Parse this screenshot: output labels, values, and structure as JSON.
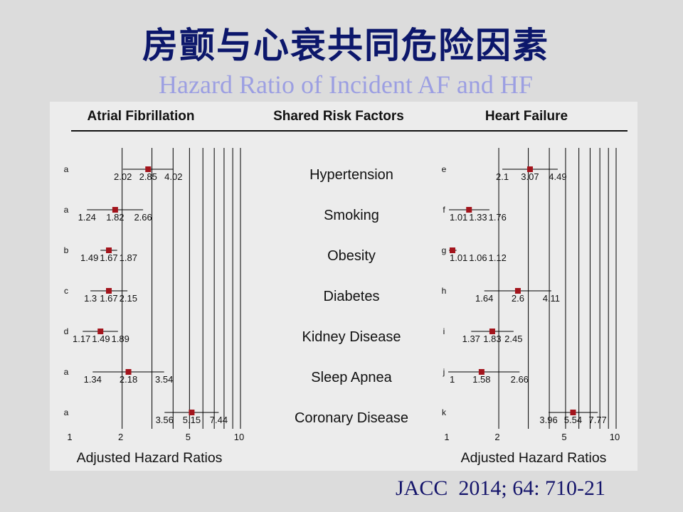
{
  "slide": {
    "title": "房颤与心衰共同危险因素",
    "subtitle": "Hazard Ratio of Incident AF and HF",
    "citation": "JACC  2014; 64: 710-21"
  },
  "colors": {
    "background": "#dcdcdc",
    "panel": "#ececec",
    "title": "#0c176b",
    "subtitle": "#9c9fe2",
    "citation": "#15156b",
    "marker": "#a3141c",
    "lines": "#000000"
  },
  "header": {
    "shared_risk_factors": "Shared Risk Factors"
  },
  "chart_data": {
    "type": "scatter",
    "x_scale": "log",
    "xlim": [
      1,
      10
    ],
    "xticks": [
      1,
      2,
      5,
      10
    ],
    "vertical_gridlines": [
      2,
      3,
      4,
      5,
      6,
      7,
      8,
      9,
      10
    ],
    "grid": true,
    "xlabel": "Adjusted Hazard Ratios",
    "categories": [
      "Hypertension",
      "Smoking",
      "Obesity",
      "Diabetes",
      "Kidney Disease",
      "Sleep Apnea",
      "Coronary Disease"
    ],
    "series": [
      {
        "name": "Atrial Fibrillation",
        "points": [
          {
            "footnote": "a",
            "hr": 2.85,
            "lower": 2.02,
            "upper": 4.02
          },
          {
            "footnote": "a",
            "hr": 1.82,
            "lower": 1.24,
            "upper": 2.66
          },
          {
            "footnote": "b",
            "hr": 1.67,
            "lower": 1.49,
            "upper": 1.87
          },
          {
            "footnote": "c",
            "hr": 1.67,
            "lower": 1.3,
            "upper": 2.15
          },
          {
            "footnote": "d",
            "hr": 1.49,
            "lower": 1.17,
            "upper": 1.89
          },
          {
            "footnote": "a",
            "hr": 2.18,
            "lower": 1.34,
            "upper": 3.54
          },
          {
            "footnote": "a",
            "hr": 5.15,
            "lower": 3.56,
            "upper": 7.44
          }
        ]
      },
      {
        "name": "Heart Failure",
        "points": [
          {
            "footnote": "e",
            "hr": 3.07,
            "lower": 2.1,
            "upper": 4.49
          },
          {
            "footnote": "f",
            "hr": 1.33,
            "lower": 1.01,
            "upper": 1.76
          },
          {
            "footnote": "g",
            "hr": 1.06,
            "lower": 1.01,
            "upper": 1.12
          },
          {
            "footnote": "h",
            "hr": 2.6,
            "lower": 1.64,
            "upper": 4.11
          },
          {
            "footnote": "i",
            "hr": 1.83,
            "lower": 1.37,
            "upper": 2.45
          },
          {
            "footnote": "j",
            "hr": 1.58,
            "lower": 1,
            "upper": 2.66
          },
          {
            "footnote": "k",
            "hr": 5.54,
            "lower": 3.96,
            "upper": 7.77
          }
        ]
      }
    ]
  }
}
